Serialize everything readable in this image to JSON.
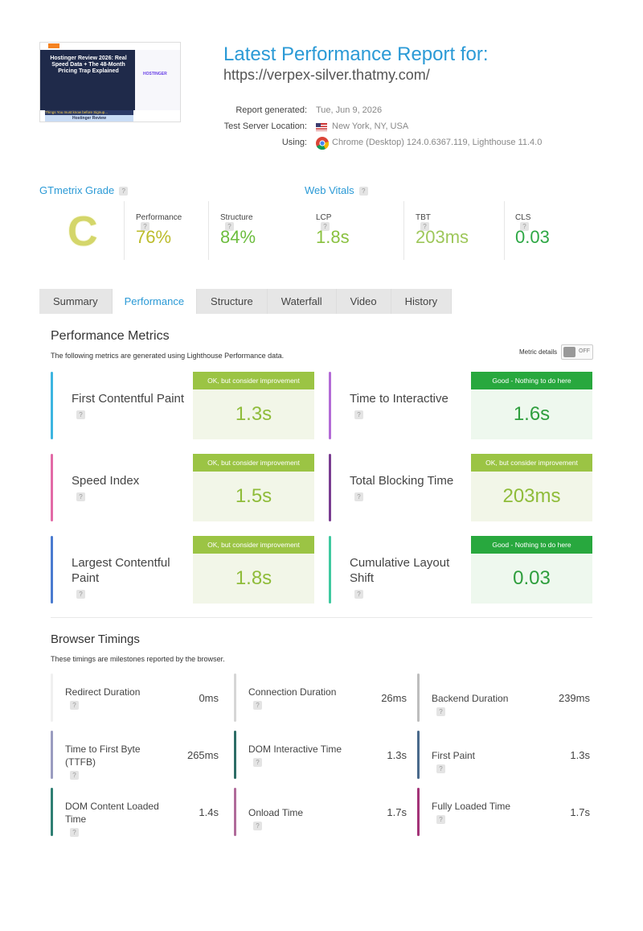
{
  "header": {
    "title": "Latest Performance Report for:",
    "url": "https://verpex-silver.thatmy.com/",
    "meta": [
      {
        "label": "Report generated:",
        "value": "Tue, Jun 9, 2026"
      },
      {
        "label": "Test Server Location:",
        "value": "New York, NY, USA"
      },
      {
        "label": "Using:",
        "value": "Chrome (Desktop) 124.0.6367.119, Lighthouse 11.4.0"
      }
    ],
    "thumbnail": {
      "headline": "Hostinger Review 2026: Real Speed Data + The 48-Month Pricing Trap Explained",
      "brand": "HOSTINGER",
      "banner": "Things You must know before Signup...",
      "footer": "Hostinger Review"
    }
  },
  "help_icon": "?",
  "grade": {
    "title": "GTmetrix Grade",
    "grade": "C",
    "metrics": [
      {
        "label": "Performance",
        "value": "76%",
        "color": "#bcbc2c"
      },
      {
        "label": "Structure",
        "value": "84%",
        "color": "#6cbd3e"
      }
    ]
  },
  "vitals": {
    "title": "Web Vitals",
    "metrics": [
      {
        "label": "LCP",
        "value": "1.8s",
        "color": "#89c13f"
      },
      {
        "label": "TBT",
        "value": "203ms",
        "color": "#9ec75a"
      },
      {
        "label": "CLS",
        "value": "0.03",
        "color": "#2ea845"
      }
    ]
  },
  "tabs": [
    {
      "label": "Summary"
    },
    {
      "label": "Performance",
      "active": true
    },
    {
      "label": "Structure"
    },
    {
      "label": "Waterfall"
    },
    {
      "label": "Video"
    },
    {
      "label": "History"
    }
  ],
  "performance_metrics": {
    "title": "Performance Metrics",
    "description": "The following metrics are generated using Lighthouse Performance data.",
    "toggle_label": "Metric details",
    "toggle_state": "OFF",
    "items": [
      {
        "name": "First Contentful Paint",
        "status": "OK, but consider improvement",
        "value": "1.3s",
        "color": "#3db5e0",
        "grade": "ok"
      },
      {
        "name": "Time to Interactive",
        "status": "Good - Nothing to do here",
        "value": "1.6s",
        "color": "#b36bd6",
        "grade": "good"
      },
      {
        "name": "Speed Index",
        "status": "OK, but consider improvement",
        "value": "1.5s",
        "color": "#e26aa6",
        "grade": "ok"
      },
      {
        "name": "Total Blocking Time",
        "status": "OK, but consider improvement",
        "value": "203ms",
        "color": "#7a3d91",
        "grade": "ok"
      },
      {
        "name": "Largest Contentful Paint",
        "status": "OK, but consider improvement",
        "value": "1.8s",
        "color": "#4a7bd0",
        "grade": "ok"
      },
      {
        "name": "Cumulative Layout Shift",
        "status": "Good - Nothing to do here",
        "value": "0.03",
        "color": "#3fc9a0",
        "grade": "good"
      }
    ]
  },
  "browser_timings": {
    "title": "Browser Timings",
    "description": "These timings are milestones reported by the browser.",
    "items": [
      {
        "name": "Redirect Duration",
        "value": "0ms",
        "color": "#f0f0f0"
      },
      {
        "name": "Connection Duration",
        "value": "26ms",
        "color": "#d6d6d6"
      },
      {
        "name": "Backend Duration",
        "value": "239ms",
        "color": "#bdbdbd"
      },
      {
        "name": "Time to First Byte (TTFB)",
        "value": "265ms",
        "color": "#9a9cc0"
      },
      {
        "name": "DOM Interactive Time",
        "value": "1.3s",
        "color": "#2d6d66"
      },
      {
        "name": "First Paint",
        "value": "1.3s",
        "color": "#4a6a8c"
      },
      {
        "name": "DOM Content Loaded Time",
        "value": "1.4s",
        "color": "#2f7f73"
      },
      {
        "name": "Onload Time",
        "value": "1.7s",
        "color": "#b06b9a"
      },
      {
        "name": "Fully Loaded Time",
        "value": "1.7s",
        "color": "#a33478"
      }
    ]
  }
}
